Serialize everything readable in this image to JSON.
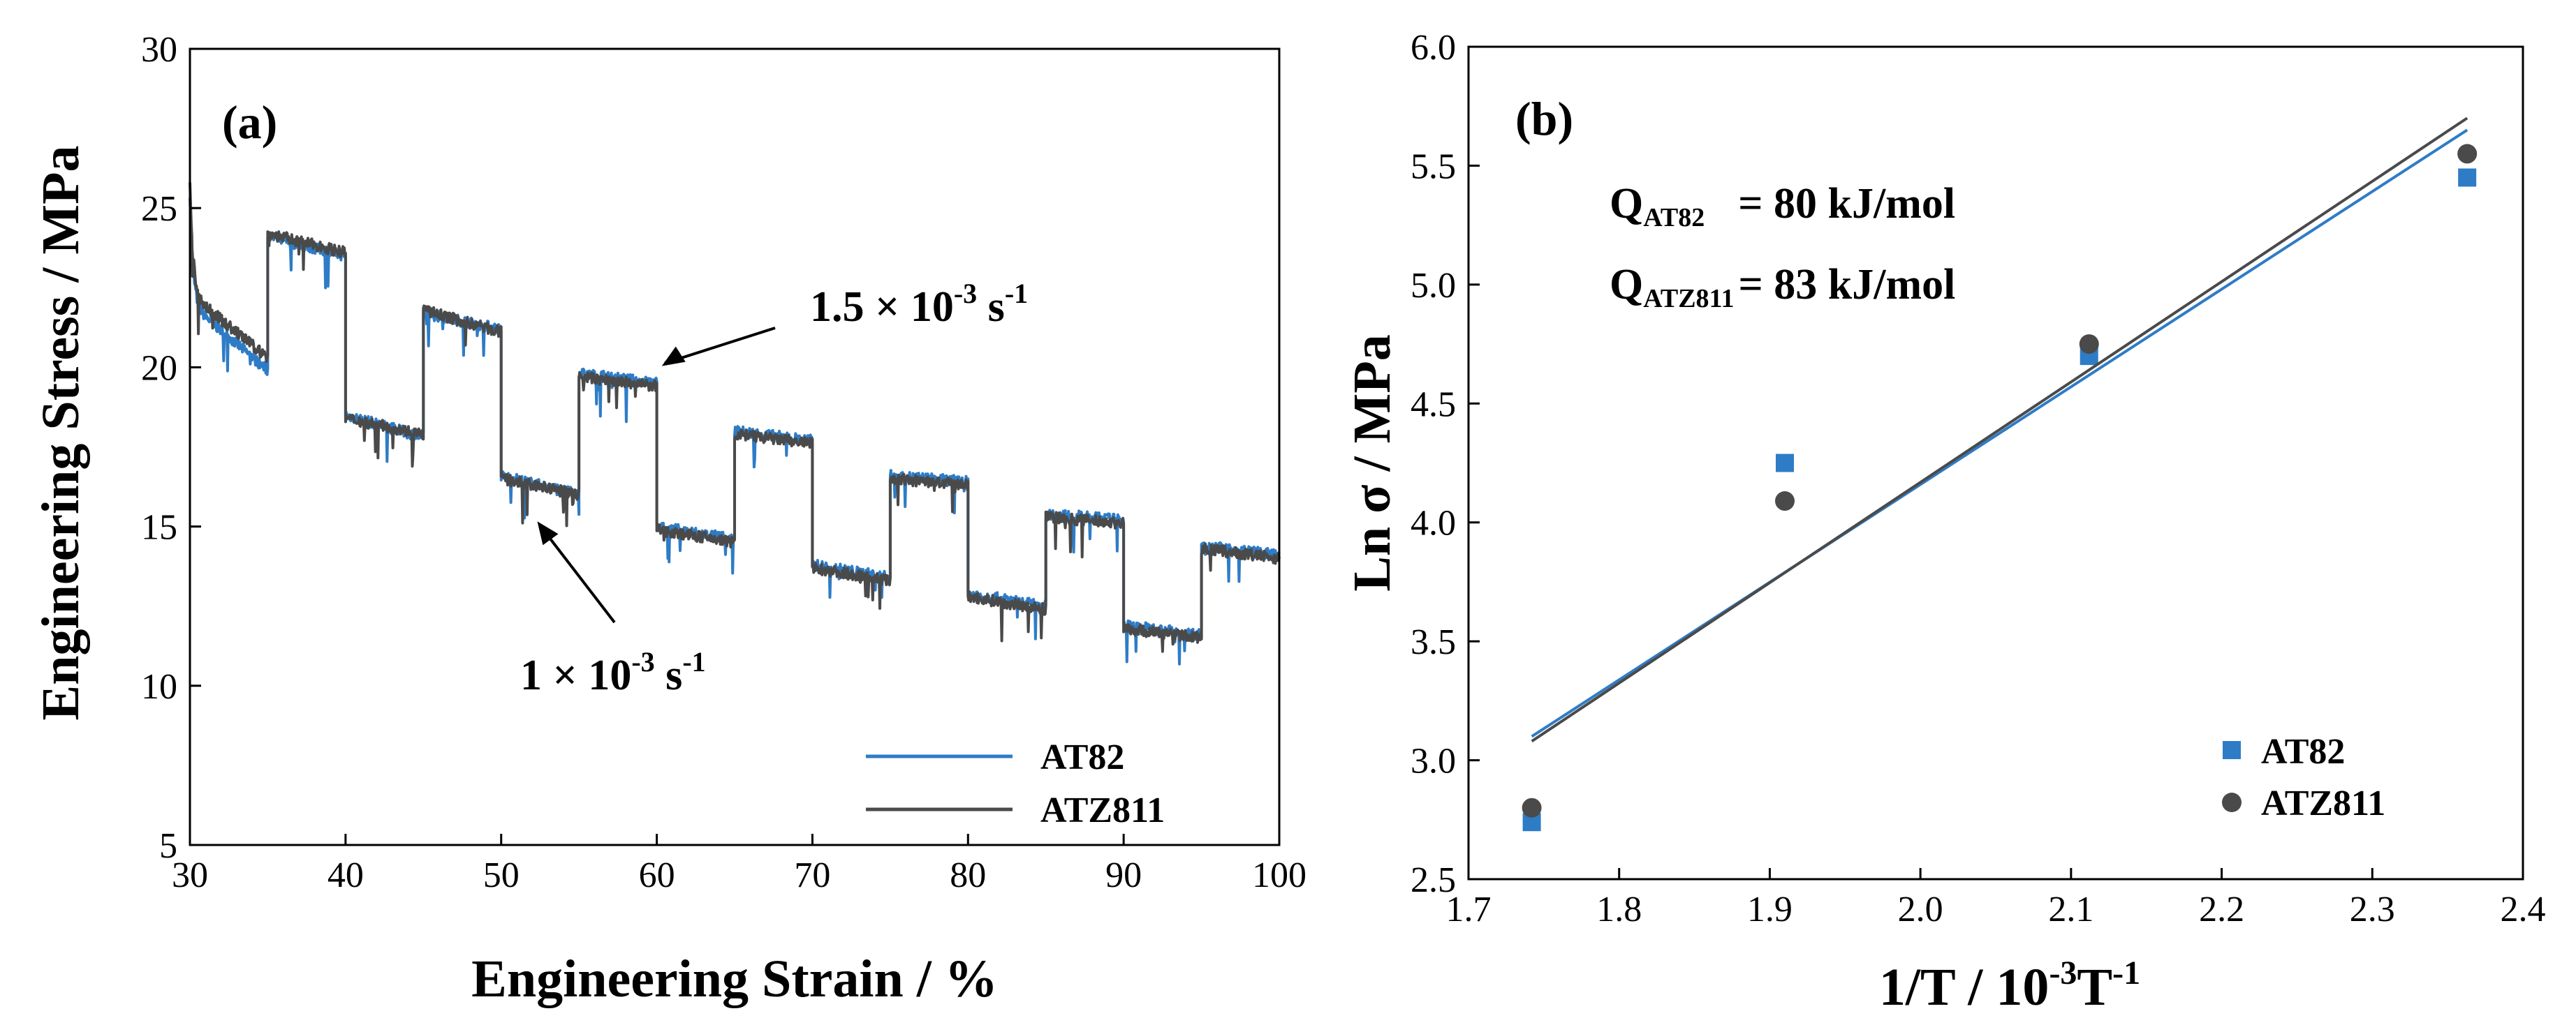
{
  "chart_data": [
    {
      "type": "line",
      "panel_label": "(a)",
      "xlabel": "Engineering Strain / %",
      "ylabel": "Engineering Stress / MPa",
      "xlim": [
        30,
        100
      ],
      "ylim": [
        5,
        30
      ],
      "xticks": [
        "30",
        "40",
        "50",
        "60",
        "70",
        "80",
        "90",
        "100"
      ],
      "yticks": [
        "5",
        "10",
        "15",
        "20",
        "25",
        "30"
      ],
      "legend_position": "bottom-right",
      "annotations": [
        {
          "text_main": "1.5 × 10",
          "sup": "-3",
          "text_unit": " s",
          "sup2": "-1",
          "points_to": [
            60,
            19.6
          ]
        },
        {
          "text_main": "1 × 10",
          "sup": "-3",
          "text_unit": " s",
          "sup2": "-1",
          "points_to": [
            52,
            15.6
          ]
        }
      ],
      "series": [
        {
          "name": "AT82",
          "color": "#2E7CC6",
          "segments": [
            {
              "x0": 30,
              "x1": 35,
              "start": 22.0,
              "end": 19.9
            },
            {
              "x0": 35,
              "x1": 40,
              "start": 24.1,
              "end": 23.5
            },
            {
              "x0": 40,
              "x1": 45,
              "start": 18.5,
              "end": 17.8
            },
            {
              "x0": 45,
              "x1": 50,
              "start": 21.7,
              "end": 21.2
            },
            {
              "x0": 50,
              "x1": 55,
              "start": 16.6,
              "end": 16.0
            },
            {
              "x0": 55,
              "x1": 60,
              "start": 19.8,
              "end": 19.5
            },
            {
              "x0": 60,
              "x1": 65,
              "start": 15.0,
              "end": 14.6
            },
            {
              "x0": 65,
              "x1": 70,
              "start": 18.0,
              "end": 17.7
            },
            {
              "x0": 70,
              "x1": 75,
              "start": 13.8,
              "end": 13.4
            },
            {
              "x0": 75,
              "x1": 80,
              "start": 16.6,
              "end": 16.4
            },
            {
              "x0": 80,
              "x1": 85,
              "start": 12.9,
              "end": 12.5
            },
            {
              "x0": 85,
              "x1": 90,
              "start": 15.4,
              "end": 15.2
            },
            {
              "x0": 90,
              "x1": 95,
              "start": 11.9,
              "end": 11.6
            },
            {
              "x0": 95,
              "x1": 100,
              "start": 14.4,
              "end": 14.1
            }
          ]
        },
        {
          "name": "ATZ811",
          "color": "#4A4A4A",
          "segments": [
            {
              "x0": 30,
              "x1": 35,
              "start": 22.3,
              "end": 20.3
            },
            {
              "x0": 35,
              "x1": 40,
              "start": 24.2,
              "end": 23.6
            },
            {
              "x0": 40,
              "x1": 45,
              "start": 18.4,
              "end": 17.9
            },
            {
              "x0": 45,
              "x1": 50,
              "start": 21.8,
              "end": 21.1
            },
            {
              "x0": 50,
              "x1": 55,
              "start": 16.5,
              "end": 16.0
            },
            {
              "x0": 55,
              "x1": 60,
              "start": 19.7,
              "end": 19.4
            },
            {
              "x0": 60,
              "x1": 65,
              "start": 14.9,
              "end": 14.5
            },
            {
              "x0": 65,
              "x1": 70,
              "start": 17.9,
              "end": 17.6
            },
            {
              "x0": 70,
              "x1": 75,
              "start": 13.7,
              "end": 13.3
            },
            {
              "x0": 75,
              "x1": 80,
              "start": 16.5,
              "end": 16.3
            },
            {
              "x0": 80,
              "x1": 85,
              "start": 12.8,
              "end": 12.4
            },
            {
              "x0": 85,
              "x1": 90,
              "start": 15.3,
              "end": 15.1
            },
            {
              "x0": 90,
              "x1": 95,
              "start": 11.8,
              "end": 11.5
            },
            {
              "x0": 95,
              "x1": 100,
              "start": 14.3,
              "end": 14.0
            }
          ]
        }
      ]
    },
    {
      "type": "scatter",
      "panel_label": "(b)",
      "xlabel_main": "1/T / 10",
      "xlabel_sup": "-3",
      "xlabel_tail": "T",
      "xlabel_sup2": "-1",
      "ylabel": "Ln σ  / MPa",
      "xlim": [
        1.7,
        2.4
      ],
      "ylim": [
        2.5,
        6.0
      ],
      "xticks": [
        "1.7",
        "1.8",
        "1.9",
        "2.0",
        "2.1",
        "2.2",
        "2.3",
        "2.4"
      ],
      "yticks": [
        "2.5",
        "3.0",
        "3.5",
        "4.0",
        "4.5",
        "5.0",
        "5.5",
        "6.0"
      ],
      "legend_position": "bottom-right",
      "annotations": [
        {
          "q": "Q",
          "sub": "AT82",
          "value": "= 80 kJ/mol"
        },
        {
          "q": "Q",
          "sub": "ATZ811",
          "value": "= 83 kJ/mol"
        }
      ],
      "series": [
        {
          "name": "AT82",
          "marker": "square",
          "color": "#2E7CC6",
          "x": [
            1.742,
            1.91,
            2.112,
            2.363
          ],
          "y": [
            2.74,
            4.25,
            4.7,
            5.45
          ],
          "fit": {
            "x": [
              1.742,
              2.363
            ],
            "y": [
              3.1,
              5.65
            ]
          }
        },
        {
          "name": "ATZ811",
          "marker": "circle",
          "color": "#4A4A4A",
          "x": [
            1.742,
            1.91,
            2.112,
            2.363
          ],
          "y": [
            2.8,
            4.09,
            4.75,
            5.55
          ],
          "fit": {
            "x": [
              1.742,
              2.363
            ],
            "y": [
              3.08,
              5.7
            ]
          }
        }
      ]
    }
  ]
}
